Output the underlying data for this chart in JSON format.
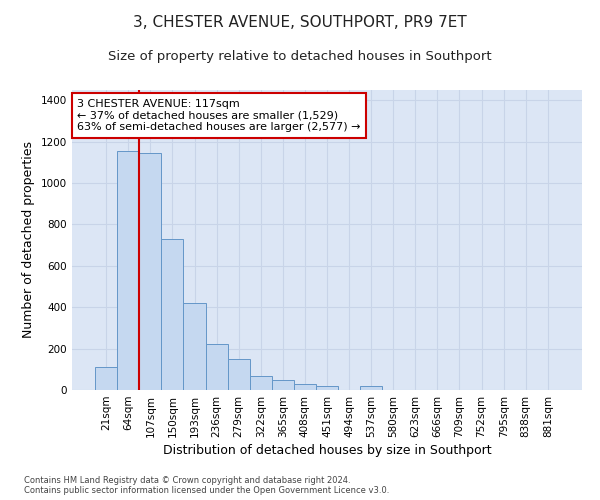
{
  "title_line1": "3, CHESTER AVENUE, SOUTHPORT, PR9 7ET",
  "title_line2": "Size of property relative to detached houses in Southport",
  "xlabel": "Distribution of detached houses by size in Southport",
  "ylabel": "Number of detached properties",
  "categories": [
    "21sqm",
    "64sqm",
    "107sqm",
    "150sqm",
    "193sqm",
    "236sqm",
    "279sqm",
    "322sqm",
    "365sqm",
    "408sqm",
    "451sqm",
    "494sqm",
    "537sqm",
    "580sqm",
    "623sqm",
    "666sqm",
    "709sqm",
    "752sqm",
    "795sqm",
    "838sqm",
    "881sqm"
  ],
  "bar_values": [
    110,
    1155,
    1145,
    730,
    420,
    220,
    150,
    70,
    50,
    30,
    20,
    0,
    20,
    0,
    0,
    0,
    0,
    0,
    0,
    0,
    0
  ],
  "bar_color": "#c5d8f0",
  "bar_edge_color": "#6496c8",
  "red_line_color": "#cc0000",
  "annotation_text": "3 CHESTER AVENUE: 117sqm\n← 37% of detached houses are smaller (1,529)\n63% of semi-detached houses are larger (2,577) →",
  "annotation_box_color": "white",
  "annotation_box_edge_color": "#cc0000",
  "ylim": [
    0,
    1450
  ],
  "yticks": [
    0,
    200,
    400,
    600,
    800,
    1000,
    1200,
    1400
  ],
  "grid_color": "#c8d4e8",
  "bg_color": "#dce6f5",
  "footer_line1": "Contains HM Land Registry data © Crown copyright and database right 2024.",
  "footer_line2": "Contains public sector information licensed under the Open Government Licence v3.0.",
  "title_fontsize": 11,
  "subtitle_fontsize": 9.5,
  "tick_fontsize": 7.5,
  "ylabel_fontsize": 9,
  "xlabel_fontsize": 9,
  "footer_fontsize": 6,
  "annotation_fontsize": 8
}
